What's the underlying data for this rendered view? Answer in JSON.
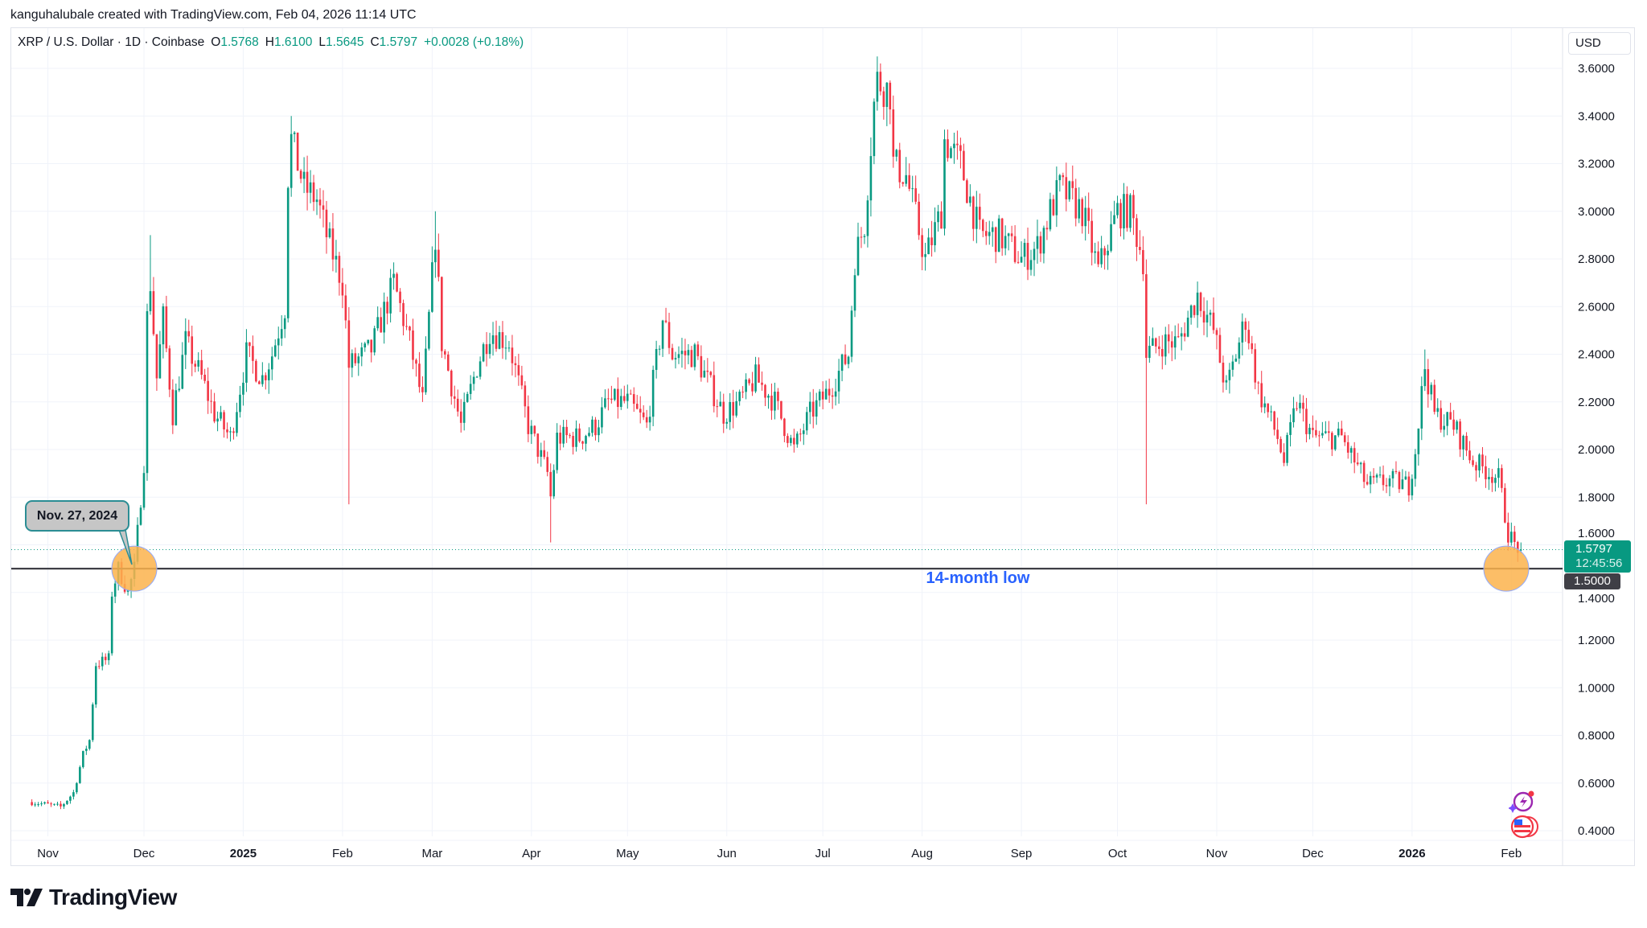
{
  "credit": "kanguhalubale created with TradingView.com, Feb 04, 2026 11:14 UTC",
  "legend": {
    "symbol": "XRP / U.S. Dollar · 1D · Coinbase",
    "o_label": "O",
    "o": "1.5768",
    "h_label": "H",
    "h": "1.6100",
    "l_label": "L",
    "l": "1.5645",
    "c_label": "C",
    "c": "1.5797",
    "change": "+0.0028 (+0.18%)"
  },
  "currency": "USD",
  "last_price_label": "1.5797",
  "countdown": "12:45:56",
  "line_price_label": "1.5000",
  "callout": "Nov. 27, 2024",
  "annotation": "14-month low",
  "logo_text": "TradingView",
  "colors": {
    "up": "#089981",
    "down": "#f23645",
    "grid": "#f0f3fa",
    "line": "#3f3f46",
    "highlight": "#fbb34c",
    "annotation": "#2962ff"
  },
  "icons": [
    "tv-logo-icon",
    "ai-spark-icon",
    "us-flag-coins-icon"
  ],
  "chart_data": {
    "type": "candlestick",
    "title": "XRP / U.S. Dollar · 1D · Coinbase",
    "ylabel": "USD",
    "ylim": [
      0.4,
      3.6
    ],
    "yticks": [
      "0.4000",
      "0.6000",
      "0.8000",
      "1.0000",
      "1.2000",
      "1.4000",
      "1.6000",
      "1.8000",
      "2.0000",
      "2.2000",
      "2.4000",
      "2.6000",
      "2.8000",
      "3.0000",
      "3.2000",
      "3.4000",
      "3.6000"
    ],
    "xrange": [
      "2024-10-27",
      "2026-02-04"
    ],
    "xticks": [
      {
        "date": "2024-11-01",
        "label": "Nov",
        "bold": false
      },
      {
        "date": "2024-12-01",
        "label": "Dec",
        "bold": false
      },
      {
        "date": "2025-01-01",
        "label": "2025",
        "bold": true
      },
      {
        "date": "2025-02-01",
        "label": "Feb",
        "bold": false
      },
      {
        "date": "2025-03-01",
        "label": "Mar",
        "bold": false
      },
      {
        "date": "2025-04-01",
        "label": "Apr",
        "bold": false
      },
      {
        "date": "2025-05-01",
        "label": "May",
        "bold": false
      },
      {
        "date": "2025-06-01",
        "label": "Jun",
        "bold": false
      },
      {
        "date": "2025-07-01",
        "label": "Jul",
        "bold": false
      },
      {
        "date": "2025-08-01",
        "label": "Aug",
        "bold": false
      },
      {
        "date": "2025-09-01",
        "label": "Sep",
        "bold": false
      },
      {
        "date": "2025-10-01",
        "label": "Oct",
        "bold": false
      },
      {
        "date": "2025-11-01",
        "label": "Nov",
        "bold": false
      },
      {
        "date": "2025-12-01",
        "label": "Dec",
        "bold": false
      },
      {
        "date": "2026-01-01",
        "label": "2026",
        "bold": true
      },
      {
        "date": "2026-02-01",
        "label": "Feb",
        "bold": false
      }
    ],
    "grid": true,
    "close_path": [
      [
        "2024-10-27",
        0.52
      ],
      [
        "2024-11-05",
        0.5
      ],
      [
        "2024-11-09",
        0.56
      ],
      [
        "2024-11-12",
        0.72
      ],
      [
        "2024-11-14",
        0.78
      ],
      [
        "2024-11-16",
        1.1
      ],
      [
        "2024-11-20",
        1.12
      ],
      [
        "2024-11-21",
        1.4
      ],
      [
        "2024-11-23",
        1.5
      ],
      [
        "2024-11-26",
        1.4
      ],
      [
        "2024-11-28",
        1.5
      ],
      [
        "2024-11-30",
        1.8
      ],
      [
        "2024-12-01",
        1.95
      ],
      [
        "2024-12-02",
        2.55
      ],
      [
        "2024-12-03",
        2.7
      ],
      [
        "2024-12-05",
        2.3
      ],
      [
        "2024-12-07",
        2.55
      ],
      [
        "2024-12-10",
        2.15
      ],
      [
        "2024-12-14",
        2.45
      ],
      [
        "2024-12-19",
        2.3
      ],
      [
        "2024-12-23",
        2.15
      ],
      [
        "2024-12-28",
        2.05
      ],
      [
        "2025-01-02",
        2.4
      ],
      [
        "2025-01-07",
        2.3
      ],
      [
        "2025-01-10",
        2.4
      ],
      [
        "2025-01-14",
        2.6
      ],
      [
        "2025-01-15",
        3.15
      ],
      [
        "2025-01-16",
        3.3
      ],
      [
        "2025-01-20",
        3.1
      ],
      [
        "2025-01-24",
        3.05
      ],
      [
        "2025-01-27",
        2.9
      ],
      [
        "2025-02-01",
        2.7
      ],
      [
        "2025-02-03",
        2.35
      ],
      [
        "2025-02-10",
        2.42
      ],
      [
        "2025-02-17",
        2.7
      ],
      [
        "2025-02-22",
        2.45
      ],
      [
        "2025-02-26",
        2.2
      ],
      [
        "2025-03-02",
        2.9
      ],
      [
        "2025-03-04",
        2.45
      ],
      [
        "2025-03-10",
        2.1
      ],
      [
        "2025-03-15",
        2.35
      ],
      [
        "2025-03-19",
        2.5
      ],
      [
        "2025-03-25",
        2.45
      ],
      [
        "2025-03-31",
        2.1
      ],
      [
        "2025-04-06",
        1.9
      ],
      [
        "2025-04-07",
        1.8
      ],
      [
        "2025-04-09",
        2.05
      ],
      [
        "2025-04-16",
        2.05
      ],
      [
        "2025-04-21",
        2.1
      ],
      [
        "2025-04-25",
        2.2
      ],
      [
        "2025-05-01",
        2.2
      ],
      [
        "2025-05-07",
        2.1
      ],
      [
        "2025-05-12",
        2.55
      ],
      [
        "2025-05-15",
        2.4
      ],
      [
        "2025-05-22",
        2.4
      ],
      [
        "2025-05-31",
        2.15
      ],
      [
        "2025-06-05",
        2.2
      ],
      [
        "2025-06-10",
        2.3
      ],
      [
        "2025-06-16",
        2.2
      ],
      [
        "2025-06-22",
        2.0
      ],
      [
        "2025-06-27",
        2.15
      ],
      [
        "2025-07-03",
        2.25
      ],
      [
        "2025-07-09",
        2.4
      ],
      [
        "2025-07-11",
        2.8
      ],
      [
        "2025-07-14",
        2.95
      ],
      [
        "2025-07-17",
        3.45
      ],
      [
        "2025-07-18",
        3.55
      ],
      [
        "2025-07-22",
        3.5
      ],
      [
        "2025-07-23",
        3.2
      ],
      [
        "2025-07-27",
        3.15
      ],
      [
        "2025-08-02",
        2.8
      ],
      [
        "2025-08-07",
        3.0
      ],
      [
        "2025-08-08",
        3.3
      ],
      [
        "2025-08-13",
        3.2
      ],
      [
        "2025-08-19",
        2.9
      ],
      [
        "2025-08-25",
        2.9
      ],
      [
        "2025-09-01",
        2.8
      ],
      [
        "2025-09-06",
        2.85
      ],
      [
        "2025-09-10",
        3.0
      ],
      [
        "2025-09-13",
        3.1
      ],
      [
        "2025-09-20",
        3.0
      ],
      [
        "2025-09-25",
        2.75
      ],
      [
        "2025-10-01",
        3.0
      ],
      [
        "2025-10-05",
        3.0
      ],
      [
        "2025-10-09",
        2.8
      ],
      [
        "2025-10-10",
        2.4
      ],
      [
        "2025-10-15",
        2.45
      ],
      [
        "2025-10-20",
        2.45
      ],
      [
        "2025-10-26",
        2.65
      ],
      [
        "2025-10-31",
        2.5
      ],
      [
        "2025-11-04",
        2.25
      ],
      [
        "2025-11-10",
        2.55
      ],
      [
        "2025-11-14",
        2.25
      ],
      [
        "2025-11-20",
        2.05
      ],
      [
        "2025-11-22",
        1.95
      ],
      [
        "2025-11-26",
        2.2
      ],
      [
        "2025-12-01",
        2.05
      ],
      [
        "2025-12-10",
        2.05
      ],
      [
        "2025-12-18",
        1.85
      ],
      [
        "2025-12-25",
        1.87
      ],
      [
        "2025-12-31",
        1.85
      ],
      [
        "2026-01-02",
        2.0
      ],
      [
        "2026-01-05",
        2.35
      ],
      [
        "2026-01-08",
        2.15
      ],
      [
        "2026-01-14",
        2.1
      ],
      [
        "2026-01-20",
        1.95
      ],
      [
        "2026-01-28",
        1.88
      ],
      [
        "2026-01-31",
        1.65
      ],
      [
        "2026-02-02",
        1.6
      ],
      [
        "2026-02-04",
        1.5797
      ]
    ],
    "wick_extremes": [
      {
        "date": "2024-12-03",
        "high": 2.9
      },
      {
        "date": "2025-01-16",
        "high": 3.4
      },
      {
        "date": "2025-02-03",
        "low": 1.77
      },
      {
        "date": "2025-03-02",
        "high": 3.0
      },
      {
        "date": "2025-04-07",
        "low": 1.61
      },
      {
        "date": "2025-07-18",
        "high": 3.65
      },
      {
        "date": "2025-10-10",
        "low": 1.77
      },
      {
        "date": "2026-01-05",
        "high": 2.42
      }
    ],
    "last_candle": {
      "date": "2026-02-04",
      "open": 1.5768,
      "high": 1.61,
      "low": 1.5645,
      "close": 1.5797
    },
    "horizontal_line": 1.5,
    "highlighted_dates": [
      "2024-11-27",
      "2026-02-02"
    ]
  }
}
